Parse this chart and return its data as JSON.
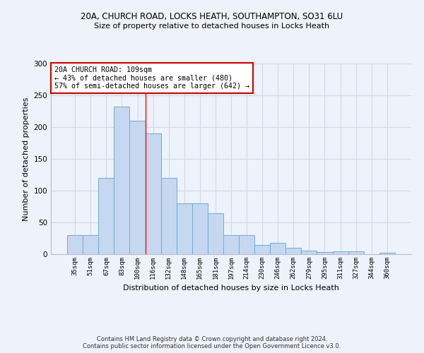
{
  "title_line1": "20A, CHURCH ROAD, LOCKS HEATH, SOUTHAMPTON, SO31 6LU",
  "title_line2": "Size of property relative to detached houses in Locks Heath",
  "xlabel": "Distribution of detached houses by size in Locks Heath",
  "ylabel": "Number of detached properties",
  "categories": [
    "35sqm",
    "51sqm",
    "67sqm",
    "83sqm",
    "100sqm",
    "116sqm",
    "132sqm",
    "148sqm",
    "165sqm",
    "181sqm",
    "197sqm",
    "214sqm",
    "230sqm",
    "246sqm",
    "262sqm",
    "279sqm",
    "295sqm",
    "311sqm",
    "327sqm",
    "344sqm",
    "360sqm"
  ],
  "values": [
    30,
    30,
    120,
    232,
    210,
    190,
    120,
    80,
    80,
    65,
    30,
    30,
    14,
    18,
    10,
    6,
    3,
    4,
    4,
    0,
    2
  ],
  "bar_color": "#c5d8f0",
  "bar_edge_color": "#6baed6",
  "grid_color": "#d0d8e8",
  "annotation_text": "20A CHURCH ROAD: 109sqm\n← 43% of detached houses are smaller (480)\n57% of semi-detached houses are larger (642) →",
  "annotation_box_color": "#ffffff",
  "annotation_box_edge": "#cc0000",
  "red_line_x": 4.5,
  "footer_line1": "Contains HM Land Registry data © Crown copyright and database right 2024.",
  "footer_line2": "Contains public sector information licensed under the Open Government Licence v3.0.",
  "ylim": [
    0,
    300
  ],
  "background_color": "#eef2fa"
}
